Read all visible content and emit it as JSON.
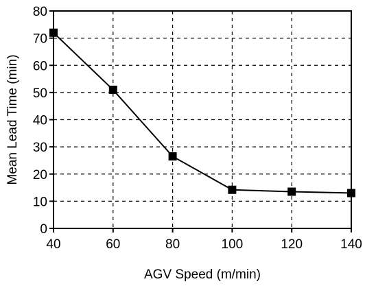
{
  "chart_data": {
    "type": "line",
    "title": "",
    "xlabel": "AGV Speed (m/min)",
    "ylabel": "Mean Lead Time (min)",
    "x": [
      40,
      60,
      80,
      100,
      120,
      140
    ],
    "series": [
      {
        "values": [
          72,
          51,
          26.5,
          14.2,
          13.5,
          13
        ]
      }
    ],
    "xlim": [
      40,
      140
    ],
    "ylim": [
      0,
      80
    ],
    "xticks": [
      40,
      60,
      80,
      100,
      120,
      140
    ],
    "yticks": [
      0,
      10,
      20,
      30,
      40,
      50,
      60,
      70,
      80
    ],
    "grid": true,
    "grid_style": "dashed",
    "marker": "square",
    "line_color": "#000000"
  }
}
